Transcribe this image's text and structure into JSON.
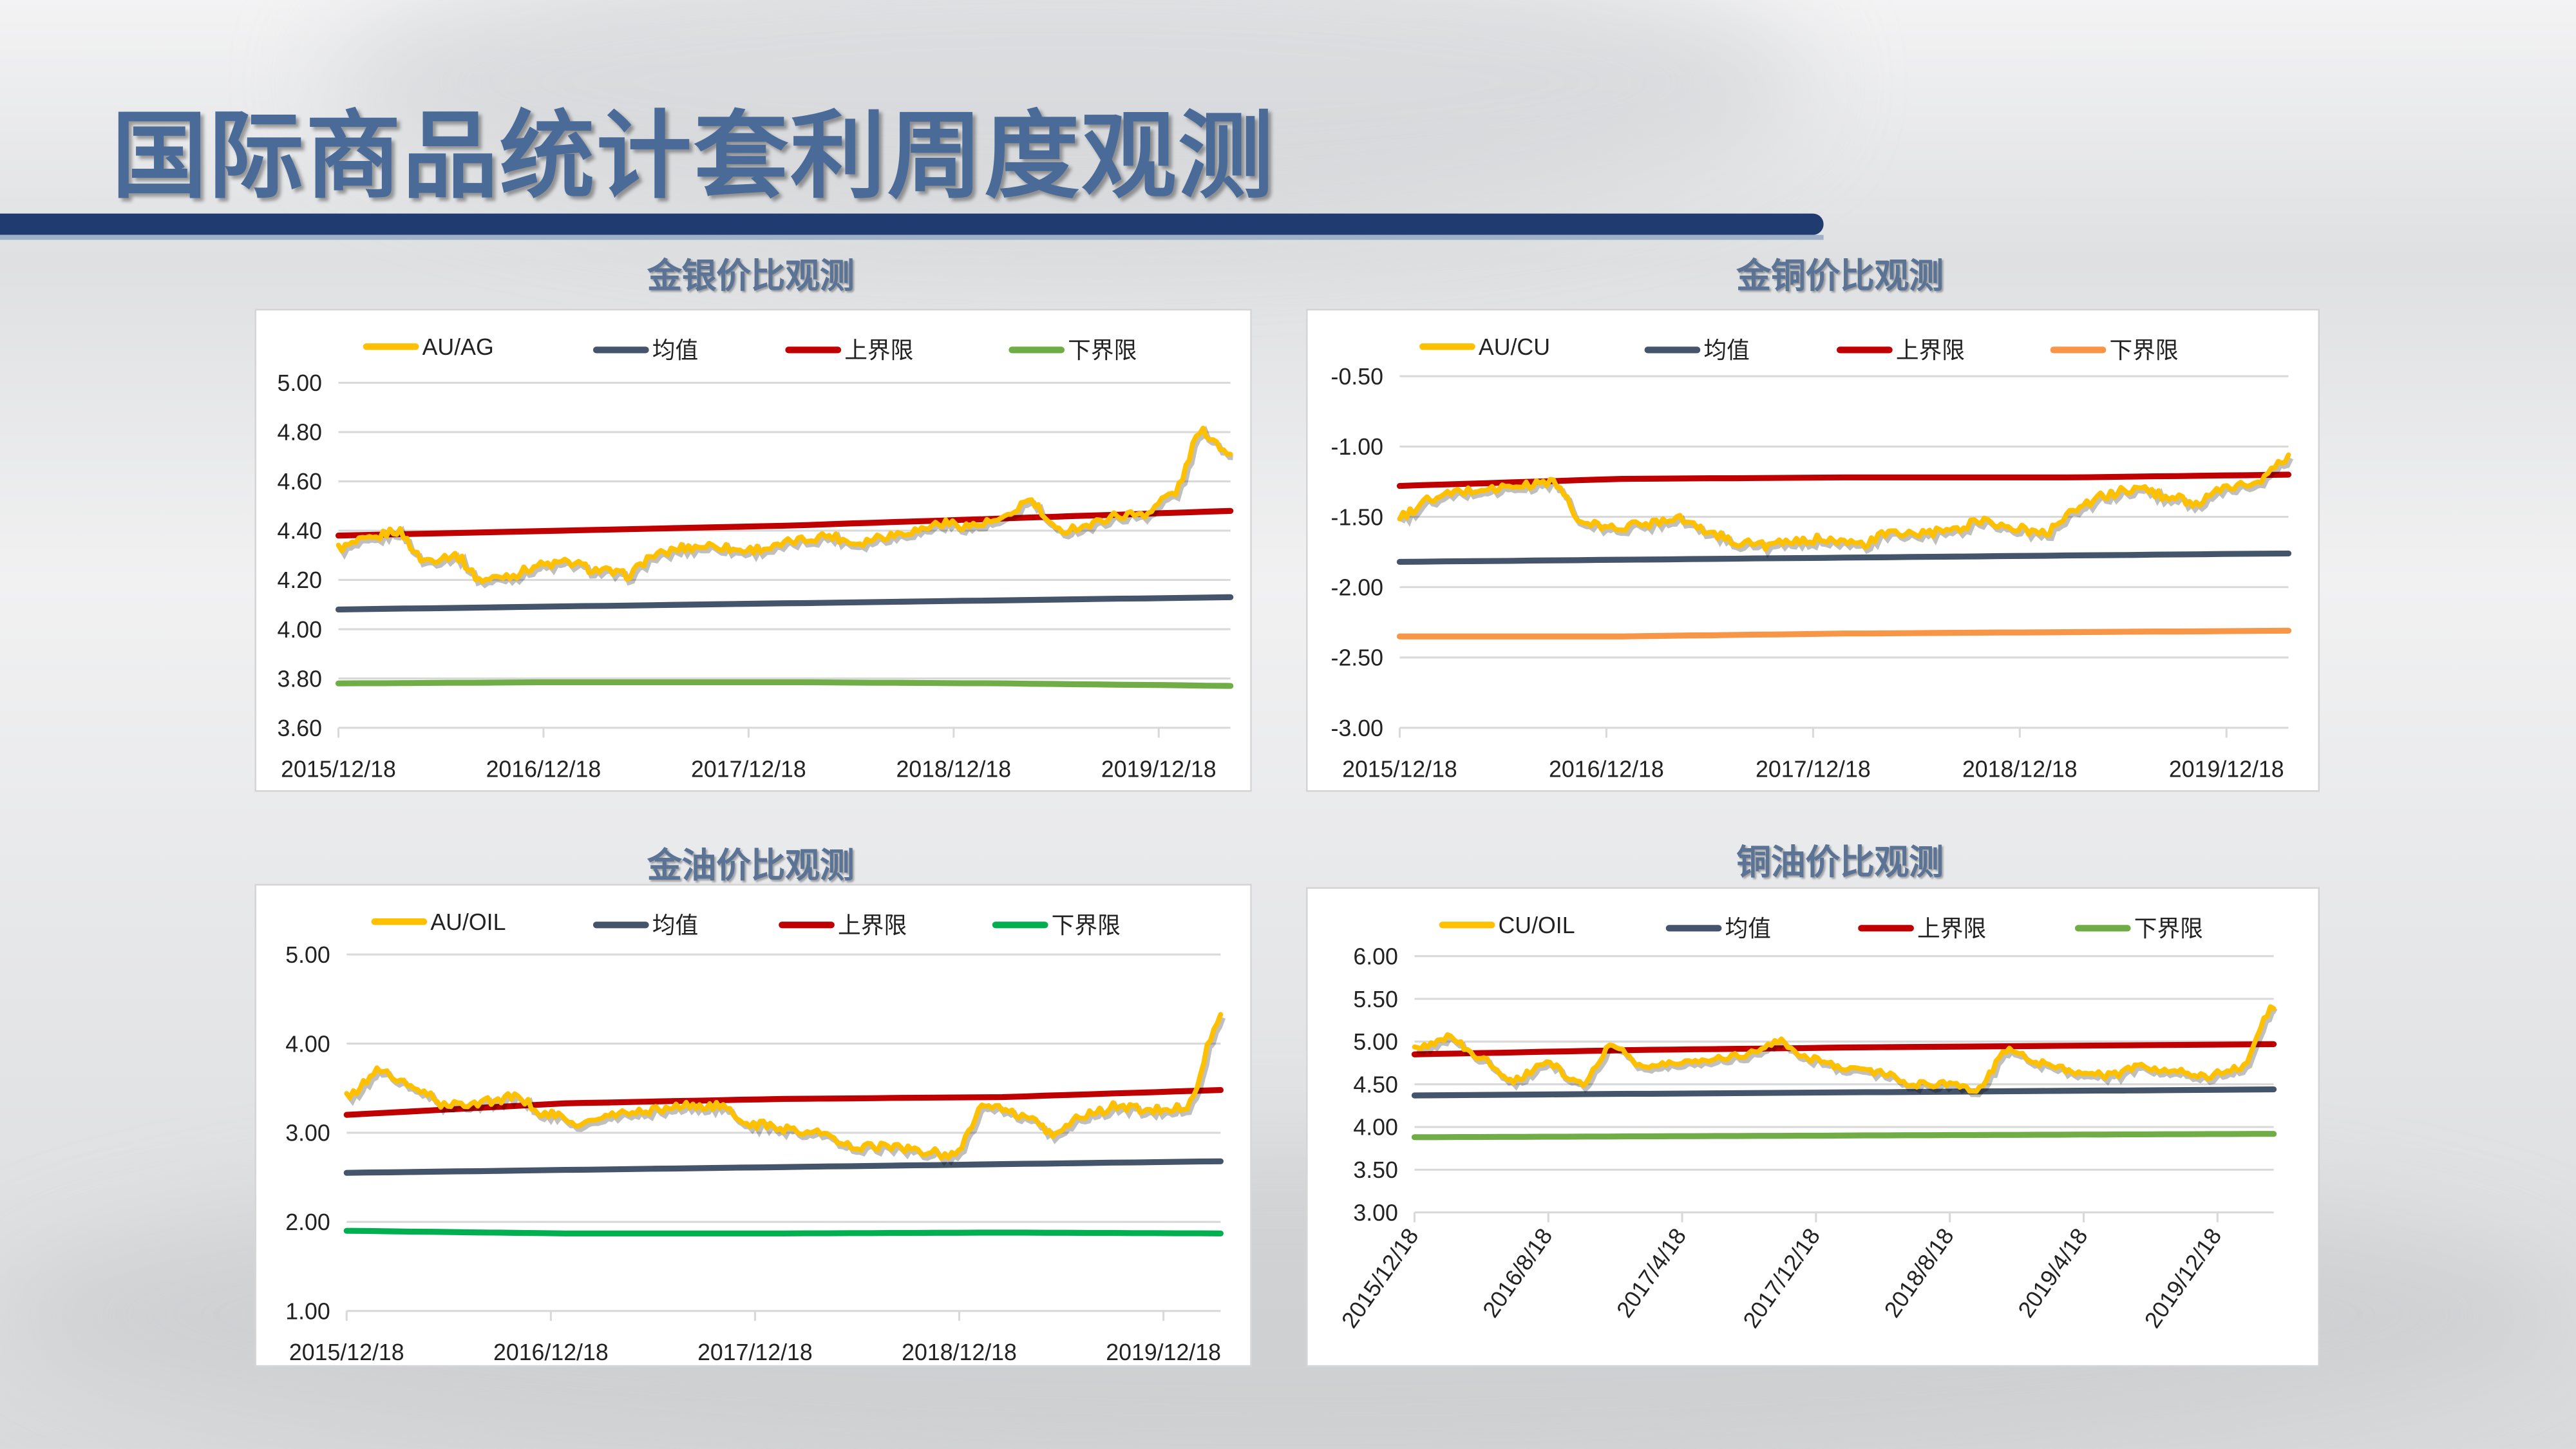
{
  "page": {
    "title": "国际商品统计套利周度观测"
  },
  "chart_data": [
    {
      "type": "line",
      "title": "金银价比观测",
      "ylim": [
        3.6,
        5.0
      ],
      "ytick_labels": [
        "3.60",
        "3.80",
        "4.00",
        "4.20",
        "4.40",
        "4.60",
        "4.80",
        "5.00"
      ],
      "xtick_labels": [
        "2015/12/18",
        "2016/12/18",
        "2017/12/18",
        "2018/12/18",
        "2019/12/18"
      ],
      "x_range_years": [
        0,
        4.35
      ],
      "series": [
        {
          "name": "AU/AG",
          "color": "#ffc000",
          "values": [
            4.33,
            4.36,
            4.4,
            4.28,
            4.3,
            4.2,
            4.22,
            4.26,
            4.27,
            4.24,
            4.22,
            4.3,
            4.33,
            4.34,
            4.32,
            4.33,
            4.36,
            4.38,
            4.35,
            4.38,
            4.4,
            4.43,
            4.42,
            4.44,
            4.52,
            4.4,
            4.42,
            4.46,
            4.47,
            4.55,
            4.8,
            4.72
          ]
        },
        {
          "name": "均值",
          "color": "#44546a",
          "values": [
            4.08,
            4.13
          ]
        },
        {
          "name": "上界限",
          "color": "#c00000",
          "values": [
            4.38,
            4.4,
            4.42,
            4.45,
            4.48
          ]
        },
        {
          "name": "下界限",
          "color": "#70ad47",
          "values": [
            3.78,
            3.785,
            3.785,
            3.78,
            3.77
          ]
        }
      ]
    },
    {
      "type": "line",
      "title": "金铜价比观测",
      "ylim": [
        -3.0,
        -0.5
      ],
      "ytick_labels": [
        "-3.00",
        "-2.50",
        "-2.00",
        "-1.50",
        "-1.00",
        "-0.50"
      ],
      "xtick_labels": [
        "2015/12/18",
        "2016/12/18",
        "2017/12/18",
        "2018/12/18",
        "2019/12/18"
      ],
      "x_range_years": [
        0,
        4.3
      ],
      "series": [
        {
          "name": "AU/CU",
          "color": "#ffc000",
          "values": [
            -1.5,
            -1.38,
            -1.32,
            -1.3,
            -1.28,
            -1.25,
            -1.55,
            -1.58,
            -1.55,
            -1.5,
            -1.6,
            -1.68,
            -1.7,
            -1.68,
            -1.65,
            -1.7,
            -1.62,
            -1.62,
            -1.6,
            -1.52,
            -1.58,
            -1.62,
            -1.45,
            -1.35,
            -1.3,
            -1.35,
            -1.4,
            -1.3,
            -1.25,
            -1.08
          ]
        },
        {
          "name": "均值",
          "color": "#44546a",
          "values": [
            -1.82,
            -1.76
          ]
        },
        {
          "name": "上界限",
          "color": "#c00000",
          "values": [
            -1.28,
            -1.23,
            -1.22,
            -1.22,
            -1.2
          ]
        },
        {
          "name": "下界限",
          "color": "#f79646",
          "values": [
            -2.35,
            -2.35,
            -2.33,
            -2.32,
            -2.31
          ]
        }
      ]
    },
    {
      "type": "line",
      "title": "金油价比观测",
      "ylim": [
        1.0,
        5.0
      ],
      "ytick_labels": [
        "1.00",
        "2.00",
        "3.00",
        "4.00",
        "5.00"
      ],
      "xtick_labels": [
        "2015/12/18",
        "2016/12/18",
        "2017/12/18",
        "2018/12/18",
        "2019/12/18"
      ],
      "x_range_years": [
        0,
        4.28
      ],
      "series": [
        {
          "name": "AU/OIL",
          "color": "#ffc000",
          "values": [
            3.4,
            3.7,
            3.5,
            3.3,
            3.35,
            3.4,
            3.2,
            3.1,
            3.2,
            3.25,
            3.3,
            3.3,
            3.1,
            3.05,
            3.0,
            2.85,
            2.85,
            2.8,
            2.75,
            3.3,
            3.2,
            3.0,
            3.2,
            3.3,
            3.25,
            3.3,
            4.3
          ]
        },
        {
          "name": "均值",
          "color": "#44546a",
          "values": [
            2.55,
            2.68
          ]
        },
        {
          "name": "上界限",
          "color": "#c00000",
          "values": [
            3.2,
            3.33,
            3.38,
            3.4,
            3.48
          ]
        },
        {
          "name": "下界限",
          "color": "#00b050",
          "values": [
            1.9,
            1.87,
            1.87,
            1.88,
            1.87
          ]
        }
      ]
    },
    {
      "type": "line",
      "title": "铜油价比观测",
      "ylim": [
        3.0,
        6.0
      ],
      "ytick_labels": [
        "3.00",
        "3.50",
        "4.00",
        "4.50",
        "5.00",
        "5.50",
        "6.00"
      ],
      "xtick_labels": [
        "2015/12/18",
        "2016/8/18",
        "2017/4/18",
        "2017/12/18",
        "2018/8/18",
        "2019/4/18",
        "2019/12/18"
      ],
      "x_range_years": [
        0,
        4.28
      ],
      "series": [
        {
          "name": "CU/OIL",
          "color": "#ffc000",
          "values": [
            4.9,
            5.05,
            4.8,
            4.55,
            4.75,
            4.5,
            4.95,
            4.7,
            4.75,
            4.8,
            4.85,
            5.0,
            4.8,
            4.7,
            4.65,
            4.5,
            4.5,
            4.45,
            4.9,
            4.75,
            4.65,
            4.6,
            4.7,
            4.65,
            4.6,
            4.7,
            5.4
          ]
        },
        {
          "name": "均值",
          "color": "#44546a",
          "values": [
            4.37,
            4.44
          ]
        },
        {
          "name": "上界限",
          "color": "#c00000",
          "values": [
            4.85,
            4.9,
            4.93,
            4.95,
            4.97
          ]
        },
        {
          "name": "下界限",
          "color": "#70ad47",
          "values": [
            3.88,
            3.89,
            3.9,
            3.91,
            3.92
          ]
        }
      ]
    }
  ]
}
